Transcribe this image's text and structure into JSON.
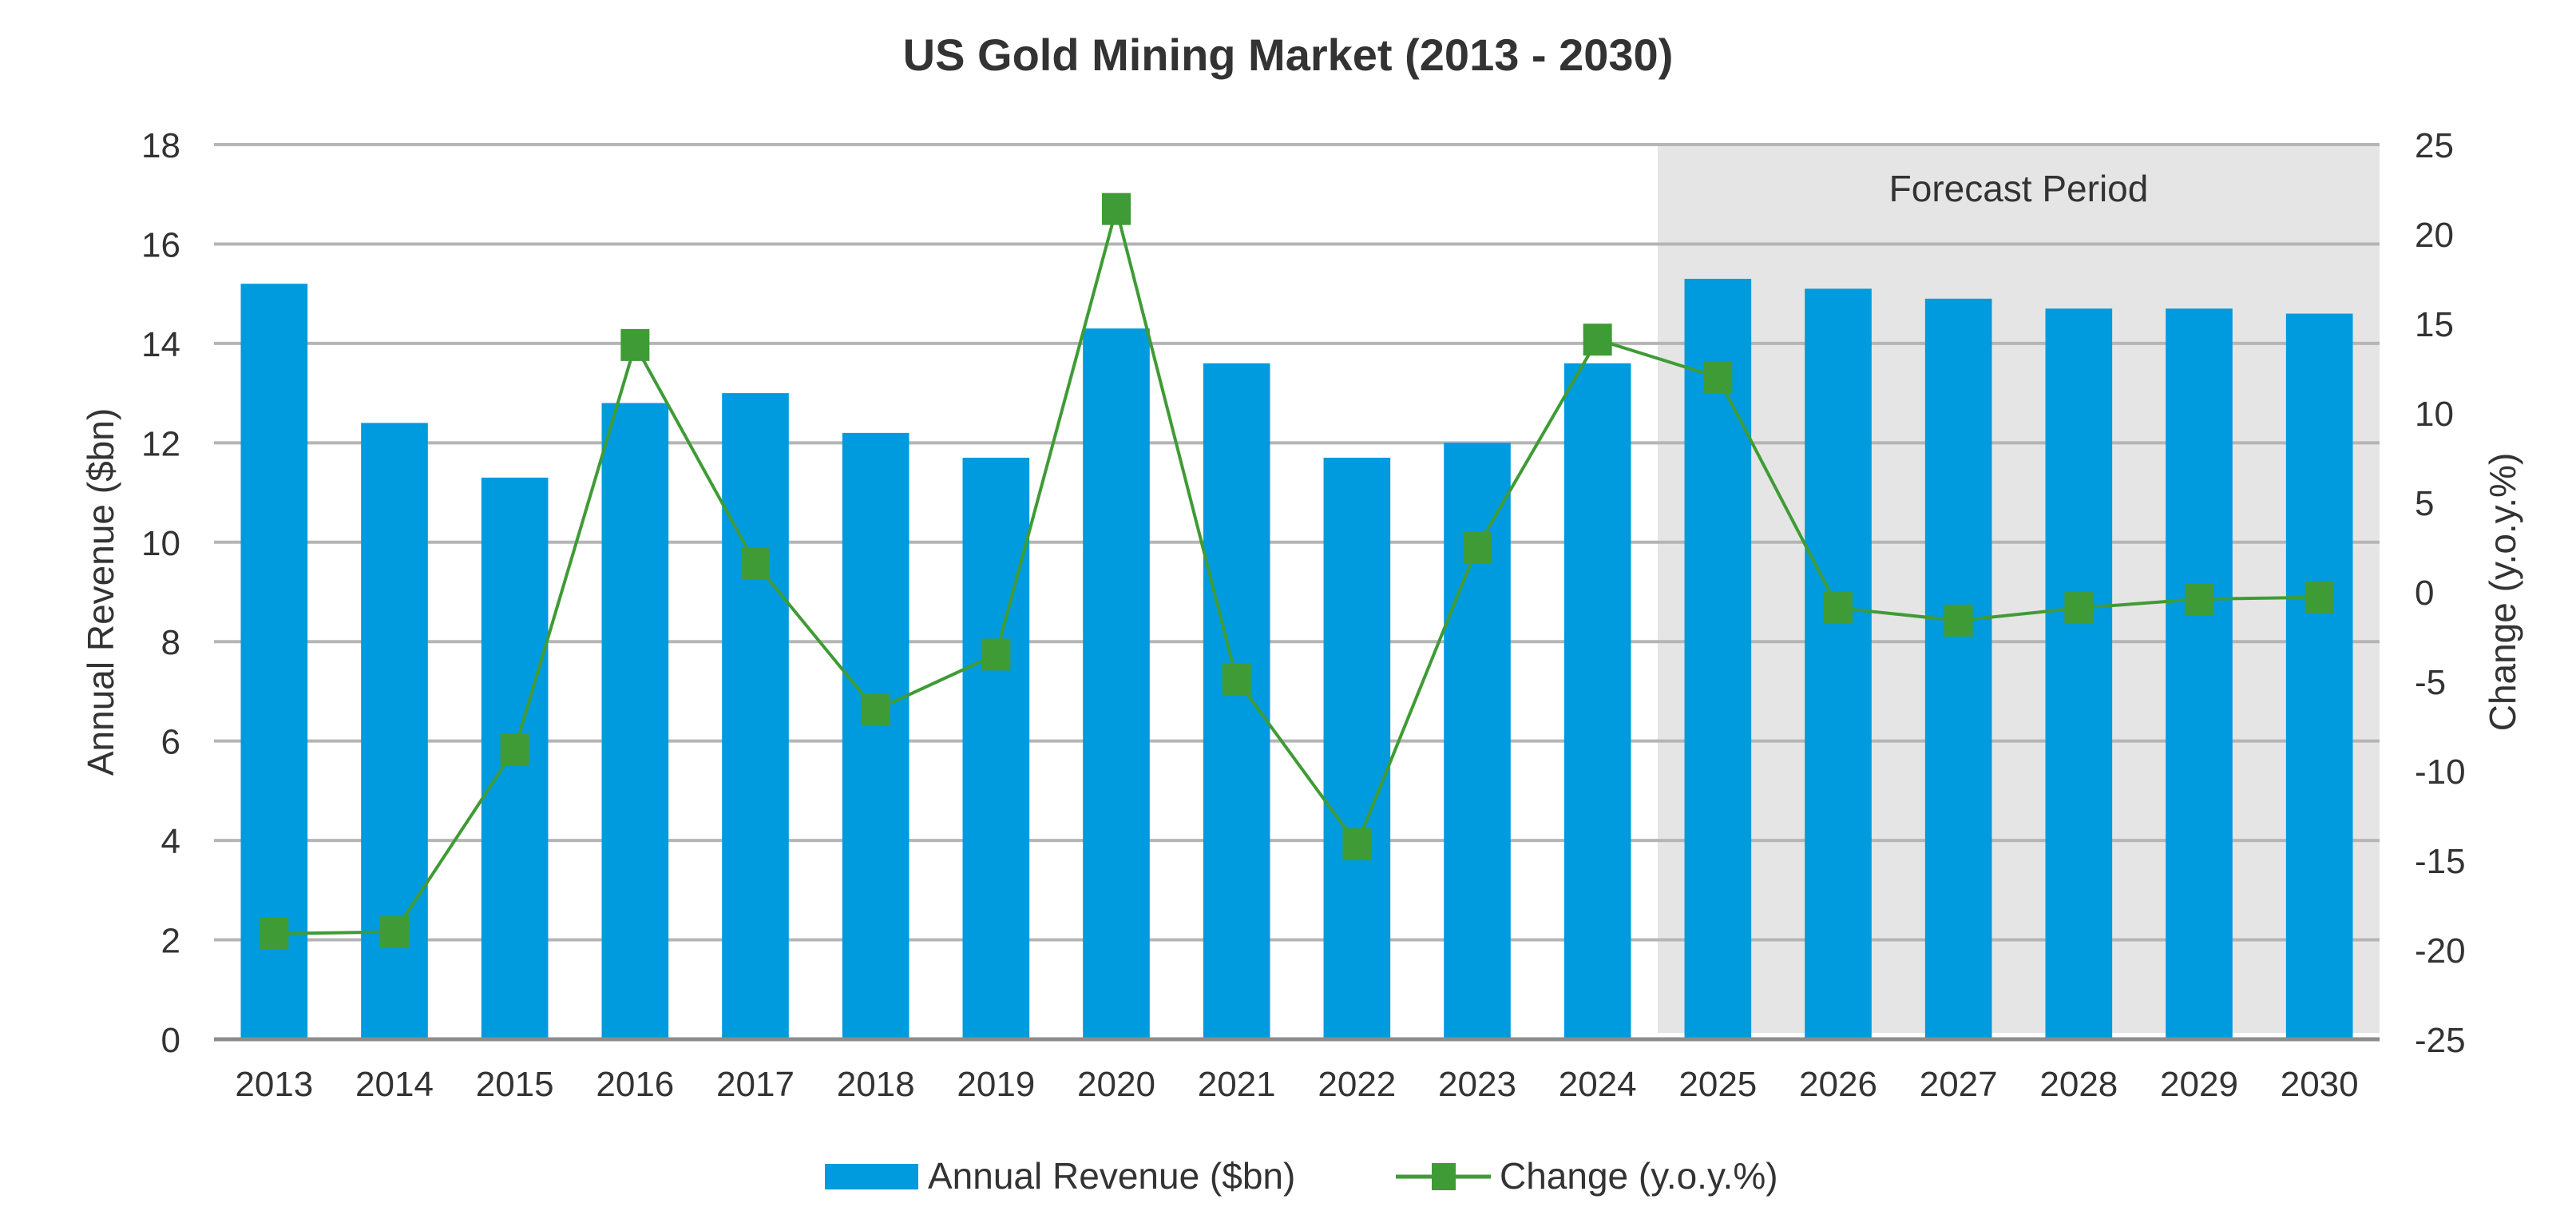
{
  "chart_data": {
    "type": "bar",
    "title": "US Gold Mining Market (2013 - 2030)",
    "xlabel": "",
    "ylabel": "Annual Revenue ($bn)",
    "y2label": "Change (y.o.y.%)",
    "ylim": [
      0,
      18
    ],
    "y2lim": [
      -25,
      25
    ],
    "yticks": [
      0,
      2,
      4,
      6,
      8,
      10,
      12,
      14,
      16,
      18
    ],
    "y2ticks": [
      -25,
      -20,
      -15,
      -10,
      -5,
      0,
      5,
      10,
      15,
      20,
      25
    ],
    "grid": true,
    "legend_position": "bottom-center",
    "categories": [
      "2013",
      "2014",
      "2015",
      "2016",
      "2017",
      "2018",
      "2019",
      "2020",
      "2021",
      "2022",
      "2023",
      "2024",
      "2025",
      "2026",
      "2027",
      "2028",
      "2029",
      "2030"
    ],
    "series": [
      {
        "name": "Annual Revenue ($bn)",
        "type": "bar",
        "axis": "left",
        "color": "#009ADE",
        "values": [
          15.2,
          12.4,
          11.3,
          12.8,
          13.0,
          12.2,
          11.7,
          14.3,
          13.6,
          11.7,
          12.0,
          13.6,
          15.3,
          15.1,
          14.9,
          14.7,
          14.7,
          14.6
        ]
      },
      {
        "name": "Change (y.o.y.%)",
        "type": "line",
        "marker": "square",
        "axis": "right",
        "color": "#3F9B35",
        "values": [
          -19.1,
          -19.0,
          -8.8,
          13.8,
          1.6,
          -6.6,
          -3.5,
          21.4,
          -4.9,
          -14.1,
          2.5,
          14.1,
          12.0,
          -0.9,
          -1.6,
          -0.9,
          -0.4,
          -0.3
        ]
      }
    ],
    "annotations": [
      {
        "text": "Forecast Period",
        "from_category": "2025",
        "to_category": "2030",
        "fill": "#E5E5E5"
      }
    ]
  },
  "colors": {
    "gridline": "#B5B5B5",
    "axis_line": "#8C8C8C",
    "text": "#333333",
    "forecast_fill": "#E5E5E5"
  },
  "legend": {
    "items": [
      {
        "label": "Annual Revenue ($bn)",
        "icon": "bar-swatch-icon"
      },
      {
        "label": "Change (y.o.y.%)",
        "icon": "line-square-marker-icon"
      }
    ]
  }
}
